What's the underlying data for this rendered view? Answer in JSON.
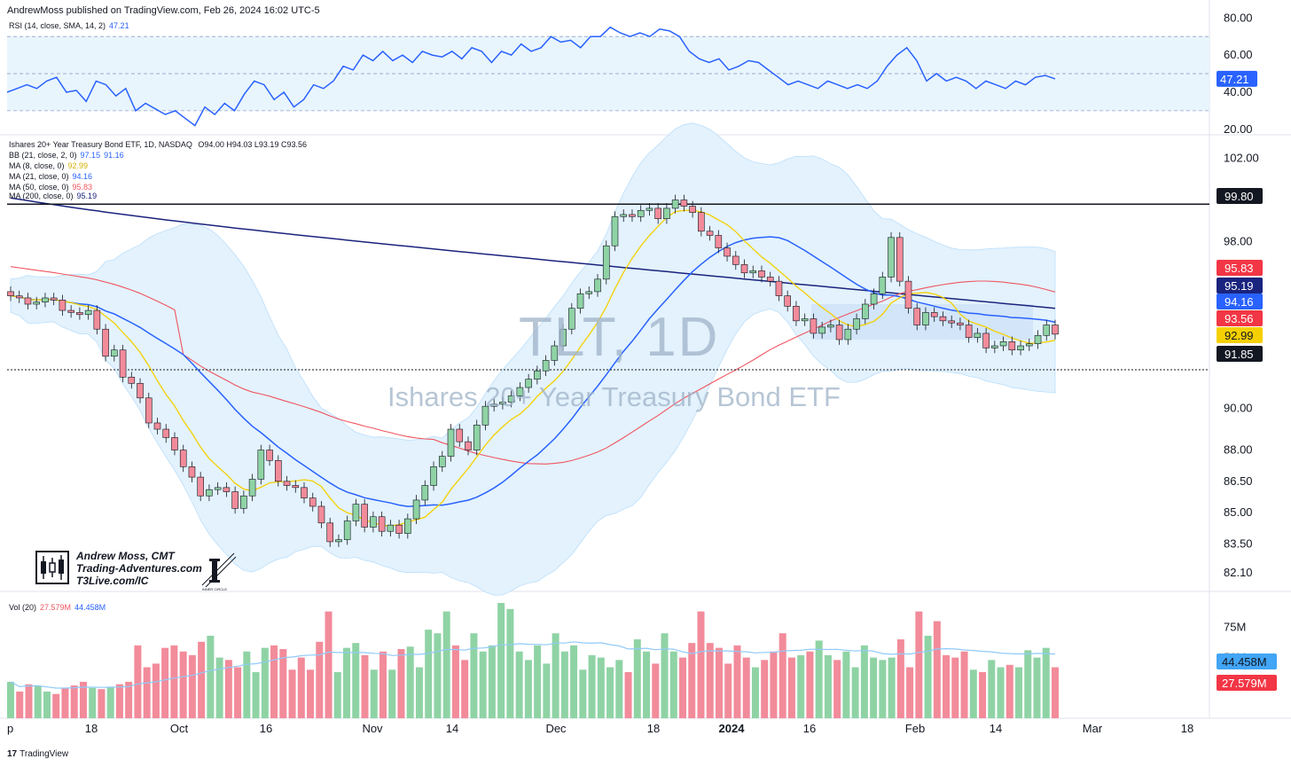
{
  "header": {
    "publisher": "AndrewMoss published on TradingView.com, Feb 26, 2024 16:02 UTC-5"
  },
  "rsi_legend": {
    "label": "RSI (14, close, SMA, 14, 2)",
    "value": "47.21"
  },
  "price_legend": {
    "symbol": "Ishares 20+ Year Treasury Bond ETF, 1D, NASDAQ",
    "ohlc": "O94.00  H94.03  L93.19  C93.56",
    "bb": {
      "label": "BB (21, close, 2, 0)",
      "v1": "97.15",
      "v2": "91.16"
    },
    "ma8": {
      "label": "MA (8, close, 0)",
      "value": "92.99"
    },
    "ma21": {
      "label": "MA (21, close, 0)",
      "value": "94.16"
    },
    "ma50": {
      "label": "MA (50, close, 0)",
      "value": "95.83"
    },
    "ma200": {
      "label": "MA (200, close, 0)",
      "value": "95.19"
    }
  },
  "vol_legend": {
    "label": "Vol (20)",
    "v1": "27.579M",
    "v2": "44.458M"
  },
  "watermark": {
    "ticker": "TLT, 1D",
    "name": "Ishares 20+ Year Treasury Bond ETF"
  },
  "logo": {
    "line1": "Andrew Moss, CMT",
    "line2": "Trading-Adventures.com",
    "line3": "T3Live.com/IC",
    "badge_text": "INNER CIRCLE"
  },
  "footer": {
    "brand": "TradingView"
  },
  "colors": {
    "up": "#8fd3a5",
    "down": "#f28b9a",
    "ma8": "#f5d000",
    "ma21": "#2962ff",
    "ma50": "#f0555f",
    "ma200": "#1a237e",
    "rsi": "#2962ff",
    "bb_fill": "#e3f2fd"
  },
  "chart_data": [
    {
      "type": "line",
      "title": "RSI (14, close, SMA, 14, 2)",
      "y_ticks": [
        "80.00",
        "60.00",
        "40.00",
        "20.00"
      ],
      "ylim": [
        18,
        83
      ],
      "bands": [
        70,
        50,
        30
      ],
      "last_value_label": "47.21",
      "values": [
        40,
        42,
        44,
        42,
        46,
        48,
        40,
        41,
        35,
        46,
        44,
        38,
        42,
        30,
        34,
        31,
        28,
        30,
        26,
        22,
        32,
        28,
        34,
        30,
        39,
        46,
        44,
        36,
        40,
        32,
        36,
        44,
        42,
        46,
        54,
        52,
        60,
        57,
        62,
        57,
        60,
        56,
        62,
        60,
        59,
        62,
        58,
        64,
        62,
        56,
        62,
        60,
        66,
        62,
        64,
        70,
        67,
        68,
        64,
        70,
        70,
        75,
        72,
        70,
        72,
        70,
        74,
        73,
        70,
        62,
        58,
        56,
        58,
        52,
        54,
        57,
        56,
        52,
        48,
        44,
        46,
        44,
        42,
        46,
        44,
        42,
        44,
        42,
        46,
        54,
        60,
        64,
        57,
        46,
        50,
        46,
        48,
        46,
        42,
        46,
        44,
        42,
        46,
        44,
        48,
        49,
        47.21
      ],
      "color": "#2962ff"
    },
    {
      "type": "candlestick",
      "title": "Ishares 20+ Year Treasury Bond ETF, 1D, NASDAQ",
      "y_ticks": [
        "102.00",
        "98.00",
        "90.00",
        "88.00",
        "86.50",
        "85.00",
        "83.50",
        "82.10"
      ],
      "ylim": [
        81.3,
        103.0
      ],
      "x_ticks": [
        "p",
        "18",
        "Oct",
        "16",
        "Nov",
        "14",
        "Dec",
        "18",
        "2024",
        "16",
        "Feb",
        "14",
        "Mar",
        "18"
      ],
      "closes": [
        95.4,
        95.3,
        95.0,
        95.1,
        95.3,
        95.2,
        94.7,
        94.6,
        94.5,
        94.7,
        93.8,
        92.5,
        92.8,
        91.5,
        91.2,
        90.5,
        89.3,
        89.0,
        88.6,
        88.0,
        87.2,
        86.7,
        85.8,
        86.1,
        86.2,
        86.0,
        85.2,
        85.8,
        86.6,
        88.0,
        87.5,
        86.5,
        86.3,
        86.2,
        85.7,
        85.3,
        84.5,
        83.6,
        83.7,
        84.6,
        85.4,
        84.3,
        84.8,
        84.1,
        84.4,
        84.0,
        84.7,
        85.6,
        86.3,
        87.2,
        87.7,
        89.0,
        88.4,
        88.0,
        89.2,
        90.1,
        90.2,
        90.3,
        90.6,
        91.0,
        91.4,
        91.8,
        92.3,
        93.0,
        93.8,
        94.8,
        95.5,
        95.6,
        96.2,
        97.8,
        99.2,
        99.3,
        99.2,
        99.5,
        99.6,
        99.1,
        99.6,
        100.0,
        99.7,
        99.4,
        98.5,
        98.3,
        97.7,
        97.3,
        96.9,
        96.5,
        96.6,
        96.3,
        96.1,
        95.4,
        94.9,
        94.2,
        94.3,
        93.6,
        93.9,
        94.0,
        93.3,
        93.8,
        94.3,
        95.0,
        95.5,
        96.3,
        98.2,
        96.1,
        94.8,
        94.0,
        94.6,
        94.4,
        94.2,
        94.1,
        94.0,
        93.4,
        93.6,
        92.9,
        93.0,
        93.2,
        92.8,
        93.0,
        93.1,
        93.5,
        94.0,
        93.56
      ],
      "support": 91.85,
      "resistance": 99.8,
      "price_labels": [
        "99.80",
        "95.83",
        "95.19",
        "94.16",
        "93.56",
        "92.99",
        "91.85"
      ],
      "series": [
        {
          "name": "BB (21, close, 2, 0)",
          "values": [
            "97.15",
            "91.16"
          ]
        },
        {
          "name": "MA (8, close, 0)",
          "value": "92.99"
        },
        {
          "name": "MA (21, close, 0)",
          "value": "94.16"
        },
        {
          "name": "MA (50, close, 0)",
          "value": "95.83"
        },
        {
          "name": "MA (200, close, 0)",
          "value": "95.19"
        }
      ]
    },
    {
      "type": "bar",
      "title": "Vol (20)",
      "y_ticks": [
        "75M",
        "50M"
      ],
      "ylim": [
        0,
        95
      ],
      "volume_labels": [
        "44.458M",
        "27.579M"
      ],
      "values": [
        30,
        22,
        28,
        27,
        22,
        20,
        25,
        27,
        30,
        25,
        24,
        26,
        28,
        30,
        60,
        42,
        45,
        58,
        60,
        55,
        52,
        63,
        68,
        50,
        48,
        42,
        55,
        38,
        58,
        60,
        57,
        40,
        50,
        40,
        63,
        88,
        38,
        58,
        62,
        52,
        40,
        55,
        40,
        57,
        59,
        42,
        73,
        70,
        88,
        60,
        48,
        70,
        55,
        60,
        95,
        90,
        55,
        48,
        60,
        45,
        70,
        55,
        60,
        40,
        52,
        50,
        42,
        48,
        38,
        65,
        55,
        45,
        70,
        55,
        50,
        62,
        88,
        62,
        58,
        45,
        60,
        50,
        42,
        48,
        55,
        70,
        50,
        52,
        55,
        64,
        52,
        48,
        55,
        42,
        60,
        50,
        48,
        50,
        65,
        42,
        88,
        68,
        80,
        52,
        50,
        55,
        40,
        38,
        48,
        42,
        44,
        42,
        56,
        50,
        58,
        42
      ],
      "avg": 44.458
    }
  ]
}
